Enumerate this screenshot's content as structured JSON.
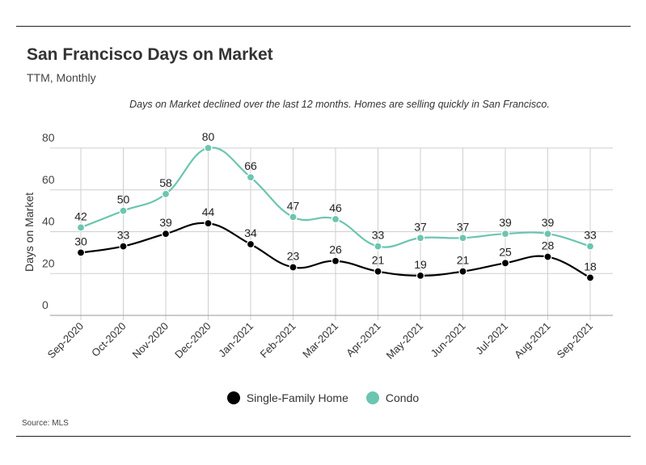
{
  "title": "San Francisco Days on Market",
  "subtitle": "TTM, Monthly",
  "annotation": "Days on Market declined over the last 12 months. Homes are selling quickly in San Francisco.",
  "source": "Source:  MLS",
  "colors": {
    "single_family": "#000000",
    "condo": "#6cc5b0",
    "grid": "#cfcfcf"
  },
  "chart_data": {
    "type": "line",
    "title": "San Francisco Days on Market",
    "subtitle": "TTM, Monthly",
    "ylabel": "Days on Market",
    "xlabel": "",
    "ylim": [
      0,
      80
    ],
    "yticks": [
      0,
      20,
      40,
      60,
      80
    ],
    "categories": [
      "Sep-2020",
      "Oct-2020",
      "Nov-2020",
      "Dec-2020",
      "Jan-2021",
      "Feb-2021",
      "Mar-2021",
      "Apr-2021",
      "May-2021",
      "Jun-2021",
      "Jul-2021",
      "Aug-2021",
      "Sep-2021"
    ],
    "series": [
      {
        "name": "Single-Family Home",
        "values": [
          30,
          33,
          39,
          44,
          34,
          23,
          26,
          21,
          19,
          21,
          25,
          28,
          18
        ]
      },
      {
        "name": "Condo",
        "values": [
          42,
          50,
          58,
          80,
          66,
          47,
          46,
          33,
          37,
          37,
          39,
          39,
          33
        ]
      }
    ],
    "grid": true,
    "legend_position": "bottom"
  }
}
